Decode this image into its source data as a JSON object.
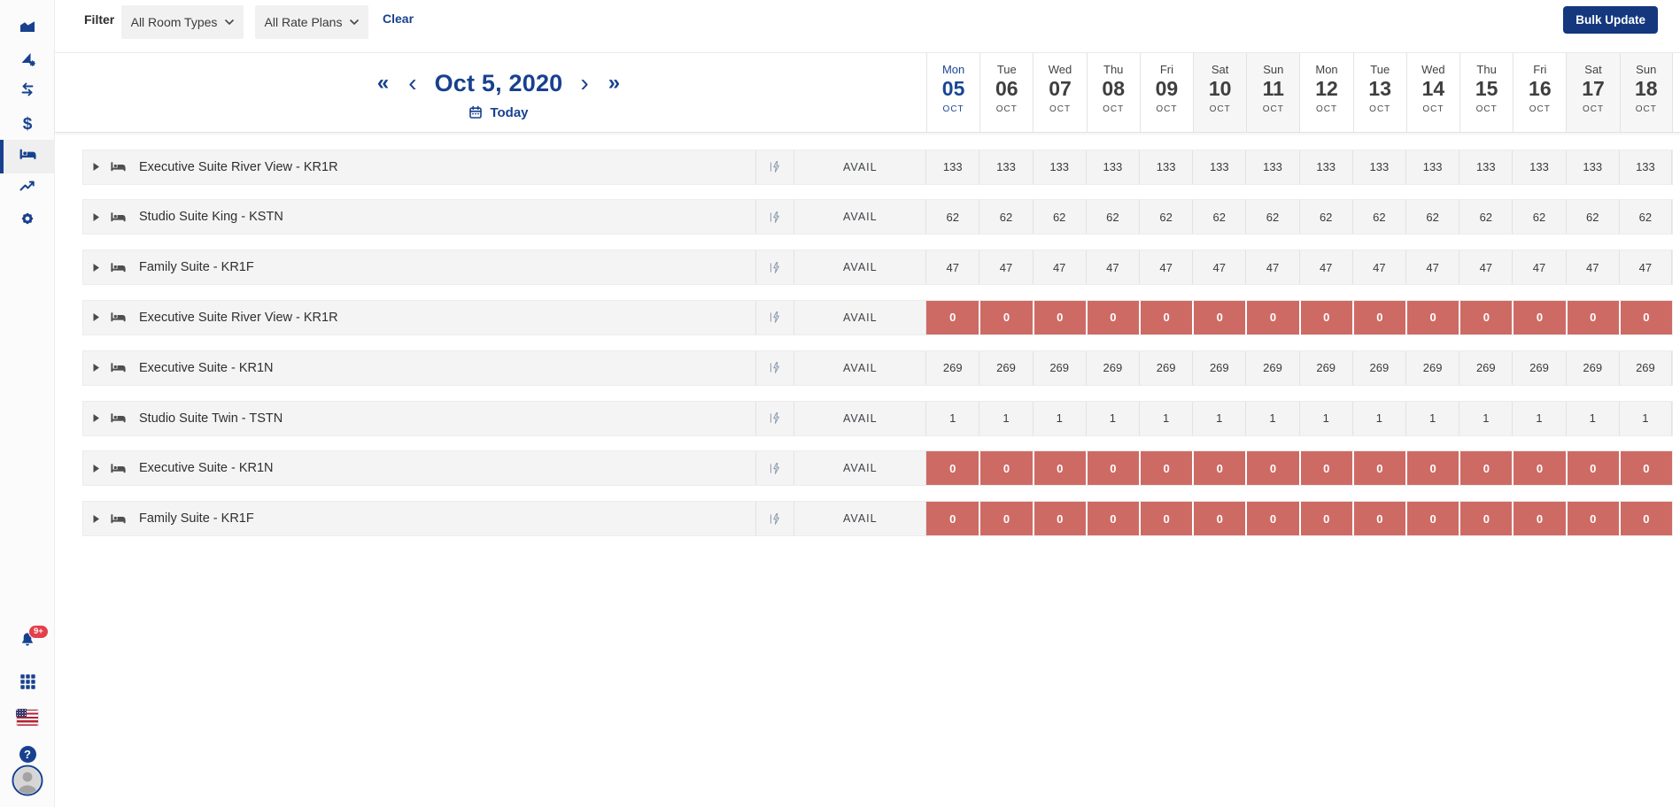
{
  "colors": {
    "accent_navy": "#17418f",
    "bulk_button": "#14377e",
    "zero_cell_red": "#ce6a64",
    "badge_red": "#e4404b",
    "row_bg": "#f4f4f5",
    "weekend_header_bg": "#f6f6f7"
  },
  "sidebar": {
    "icons_top": [
      "area-chart-icon",
      "sail-gear-icon",
      "swap-arrows-icon",
      "dollar-icon",
      "bed-icon",
      "trending-up-icon",
      "gear-icon"
    ],
    "active_icon": "bed-icon",
    "icons_bottom": [
      "bell-icon",
      "apps-grid-icon",
      "us-flag-icon",
      "help-icon",
      "avatar"
    ],
    "notifications_badge": "9+",
    "help_glyph": "?"
  },
  "topbar": {
    "filter_label": "Filter",
    "room_types_value": "All Room Types",
    "rate_plans_value": "All Rate Plans",
    "clear_label": "Clear",
    "bulk_update_label": "Bulk Update"
  },
  "calendar": {
    "title": "Oct 5, 2020",
    "today_label": "Today",
    "nav": {
      "prev_year": "«",
      "prev": "‹",
      "next": "›",
      "next_year": "»"
    },
    "days": [
      {
        "dow": "Mon",
        "day": "05",
        "month": "OCT",
        "weekend": false,
        "today": true
      },
      {
        "dow": "Tue",
        "day": "06",
        "month": "OCT",
        "weekend": false,
        "today": false
      },
      {
        "dow": "Wed",
        "day": "07",
        "month": "OCT",
        "weekend": false,
        "today": false
      },
      {
        "dow": "Thu",
        "day": "08",
        "month": "OCT",
        "weekend": false,
        "today": false
      },
      {
        "dow": "Fri",
        "day": "09",
        "month": "OCT",
        "weekend": false,
        "today": false
      },
      {
        "dow": "Sat",
        "day": "10",
        "month": "OCT",
        "weekend": true,
        "today": false
      },
      {
        "dow": "Sun",
        "day": "11",
        "month": "OCT",
        "weekend": true,
        "today": false
      },
      {
        "dow": "Mon",
        "day": "12",
        "month": "OCT",
        "weekend": false,
        "today": false
      },
      {
        "dow": "Tue",
        "day": "13",
        "month": "OCT",
        "weekend": false,
        "today": false
      },
      {
        "dow": "Wed",
        "day": "14",
        "month": "OCT",
        "weekend": false,
        "today": false
      },
      {
        "dow": "Thu",
        "day": "15",
        "month": "OCT",
        "weekend": false,
        "today": false
      },
      {
        "dow": "Fri",
        "day": "16",
        "month": "OCT",
        "weekend": false,
        "today": false
      },
      {
        "dow": "Sat",
        "day": "17",
        "month": "OCT",
        "weekend": true,
        "today": false
      },
      {
        "dow": "Sun",
        "day": "18",
        "month": "OCT",
        "weekend": true,
        "today": false
      }
    ]
  },
  "rows": [
    {
      "name": "Executive Suite River View - KR1R",
      "metric": "AVAIL",
      "zero": false,
      "values": [
        133,
        133,
        133,
        133,
        133,
        133,
        133,
        133,
        133,
        133,
        133,
        133,
        133,
        133
      ]
    },
    {
      "name": "Studio Suite King - KSTN",
      "metric": "AVAIL",
      "zero": false,
      "values": [
        62,
        62,
        62,
        62,
        62,
        62,
        62,
        62,
        62,
        62,
        62,
        62,
        62,
        62
      ]
    },
    {
      "name": "Family Suite - KR1F",
      "metric": "AVAIL",
      "zero": false,
      "values": [
        47,
        47,
        47,
        47,
        47,
        47,
        47,
        47,
        47,
        47,
        47,
        47,
        47,
        47
      ]
    },
    {
      "name": "Executive Suite River View - KR1R",
      "metric": "AVAIL",
      "zero": true,
      "values": [
        0,
        0,
        0,
        0,
        0,
        0,
        0,
        0,
        0,
        0,
        0,
        0,
        0,
        0
      ]
    },
    {
      "name": "Executive Suite - KR1N",
      "metric": "AVAIL",
      "zero": false,
      "values": [
        269,
        269,
        269,
        269,
        269,
        269,
        269,
        269,
        269,
        269,
        269,
        269,
        269,
        269
      ]
    },
    {
      "name": "Studio Suite Twin - TSTN",
      "metric": "AVAIL",
      "zero": false,
      "values": [
        1,
        1,
        1,
        1,
        1,
        1,
        1,
        1,
        1,
        1,
        1,
        1,
        1,
        1
      ]
    },
    {
      "name": "Executive Suite - KR1N",
      "metric": "AVAIL",
      "zero": true,
      "values": [
        0,
        0,
        0,
        0,
        0,
        0,
        0,
        0,
        0,
        0,
        0,
        0,
        0,
        0
      ]
    },
    {
      "name": "Family Suite - KR1F",
      "metric": "AVAIL",
      "zero": true,
      "values": [
        0,
        0,
        0,
        0,
        0,
        0,
        0,
        0,
        0,
        0,
        0,
        0,
        0,
        0
      ]
    }
  ]
}
